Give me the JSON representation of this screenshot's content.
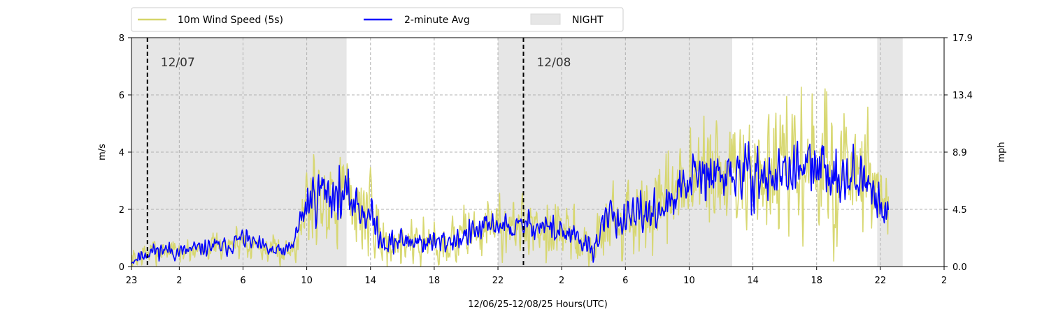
{
  "chart_data": {
    "type": "line",
    "xlabel": "12/06/25-12/08/25  Hours(UTC)",
    "ylabel_left": "m/s",
    "ylabel_right": "mph",
    "ylim": [
      0,
      8
    ],
    "xlim_hours": [
      0,
      51
    ],
    "x_ticks": [
      {
        "h": 0,
        "label": "23"
      },
      {
        "h": 3,
        "label": "2"
      },
      {
        "h": 7,
        "label": "6"
      },
      {
        "h": 11,
        "label": "10"
      },
      {
        "h": 15,
        "label": "14"
      },
      {
        "h": 19,
        "label": "18"
      },
      {
        "h": 23,
        "label": "22"
      },
      {
        "h": 27,
        "label": "2"
      },
      {
        "h": 31,
        "label": "6"
      },
      {
        "h": 35,
        "label": "10"
      },
      {
        "h": 39,
        "label": "14"
      },
      {
        "h": 43,
        "label": "18"
      },
      {
        "h": 47,
        "label": "22"
      },
      {
        "h": 51,
        "label": "2"
      }
    ],
    "y_ticks_left": [
      "0",
      "2",
      "4",
      "6",
      "8"
    ],
    "y_ticks_right": [
      "0.0",
      "4.5",
      "8.9",
      "13.4",
      "17.9"
    ],
    "grid": true,
    "legend_position": "top-left, outside",
    "legend": [
      {
        "label": "10m Wind Speed (5s)",
        "kind": "line",
        "color": "#d6d66a"
      },
      {
        "label": "2-minute Avg",
        "kind": "line",
        "color": "#0000ff"
      },
      {
        "label": "NIGHT",
        "kind": "patch",
        "color": "#e6e6e6"
      }
    ],
    "night_periods_hours": [
      [
        0,
        13.5
      ],
      [
        23.0,
        37.7
      ],
      [
        46.8,
        48.4
      ]
    ],
    "day_markers": [
      {
        "h": 1.0,
        "label": "12/07"
      },
      {
        "h": 24.6,
        "label": "12/08"
      }
    ],
    "series": [
      {
        "name": "10m Wind Speed (5s)",
        "color": "#d6d66a",
        "x_hours": [
          0,
          1,
          2,
          3,
          4,
          5,
          6,
          7,
          8,
          9,
          10,
          11,
          11.5,
          12,
          13,
          14,
          15,
          16,
          17,
          18,
          19,
          20,
          21,
          22,
          23,
          24,
          25,
          26,
          27,
          28,
          29,
          30,
          31,
          32,
          33,
          34,
          35,
          36,
          37,
          38,
          39,
          40,
          41,
          42,
          43,
          44,
          45,
          46,
          47,
          47.5
        ],
        "mean": [
          0.2,
          0.5,
          0.6,
          0.5,
          0.6,
          0.7,
          0.7,
          1.0,
          0.7,
          0.5,
          0.6,
          2.2,
          2.5,
          2.7,
          2.5,
          2.3,
          1.7,
          0.8,
          0.9,
          0.9,
          0.8,
          0.9,
          1.1,
          1.3,
          1.5,
          1.3,
          1.5,
          1.4,
          1.2,
          0.9,
          0.6,
          1.9,
          1.5,
          1.8,
          2.0,
          2.2,
          3.1,
          3.0,
          3.2,
          3.2,
          3.2,
          3.1,
          3.3,
          3.4,
          3.4,
          3.3,
          3.3,
          2.9,
          2.2,
          2.2
        ],
        "spread": [
          0.3,
          0.3,
          0.3,
          0.3,
          0.3,
          0.3,
          0.3,
          0.4,
          0.3,
          0.3,
          0.3,
          1.2,
          1.3,
          1.3,
          1.2,
          1.2,
          1.0,
          0.6,
          0.6,
          0.6,
          0.6,
          0.6,
          0.6,
          0.7,
          0.7,
          0.7,
          0.7,
          0.7,
          0.7,
          0.6,
          0.6,
          0.9,
          0.9,
          1.0,
          1.0,
          1.1,
          1.4,
          1.5,
          1.6,
          1.6,
          1.6,
          1.6,
          1.6,
          1.6,
          1.6,
          1.6,
          1.5,
          1.4,
          1.2,
          1.2
        ],
        "seed": 7
      },
      {
        "name": "2-minute Avg",
        "color": "#0000ff",
        "x_hours": [
          0,
          1,
          2,
          3,
          4,
          5,
          6,
          7,
          8,
          9,
          10,
          11,
          11.5,
          12,
          13,
          14,
          15,
          16,
          17,
          18,
          19,
          20,
          21,
          22,
          23,
          24,
          25,
          26,
          27,
          28,
          29,
          30,
          31,
          32,
          33,
          34,
          35,
          36,
          37,
          38,
          39,
          40,
          41,
          42,
          43,
          44,
          45,
          46,
          47,
          47.5
        ],
        "mean": [
          0.2,
          0.5,
          0.6,
          0.5,
          0.6,
          0.7,
          0.7,
          1.0,
          0.7,
          0.5,
          0.6,
          2.2,
          2.5,
          2.7,
          2.5,
          2.3,
          1.7,
          0.8,
          0.9,
          0.9,
          0.8,
          0.9,
          1.1,
          1.3,
          1.5,
          1.3,
          1.5,
          1.4,
          1.2,
          0.9,
          0.6,
          1.9,
          1.5,
          1.8,
          2.0,
          2.2,
          3.1,
          3.0,
          3.2,
          3.2,
          3.2,
          3.1,
          3.3,
          3.4,
          3.4,
          3.3,
          3.3,
          2.9,
          2.2,
          2.2
        ],
        "spread": [
          0.15,
          0.2,
          0.2,
          0.2,
          0.2,
          0.2,
          0.2,
          0.25,
          0.2,
          0.2,
          0.2,
          0.55,
          0.6,
          0.6,
          0.55,
          0.55,
          0.45,
          0.3,
          0.3,
          0.3,
          0.3,
          0.3,
          0.3,
          0.3,
          0.3,
          0.3,
          0.3,
          0.35,
          0.35,
          0.3,
          0.3,
          0.4,
          0.4,
          0.45,
          0.45,
          0.5,
          0.6,
          0.65,
          0.65,
          0.65,
          0.65,
          0.65,
          0.65,
          0.65,
          0.65,
          0.65,
          0.6,
          0.6,
          0.5,
          0.5
        ],
        "seed": 11
      }
    ]
  }
}
